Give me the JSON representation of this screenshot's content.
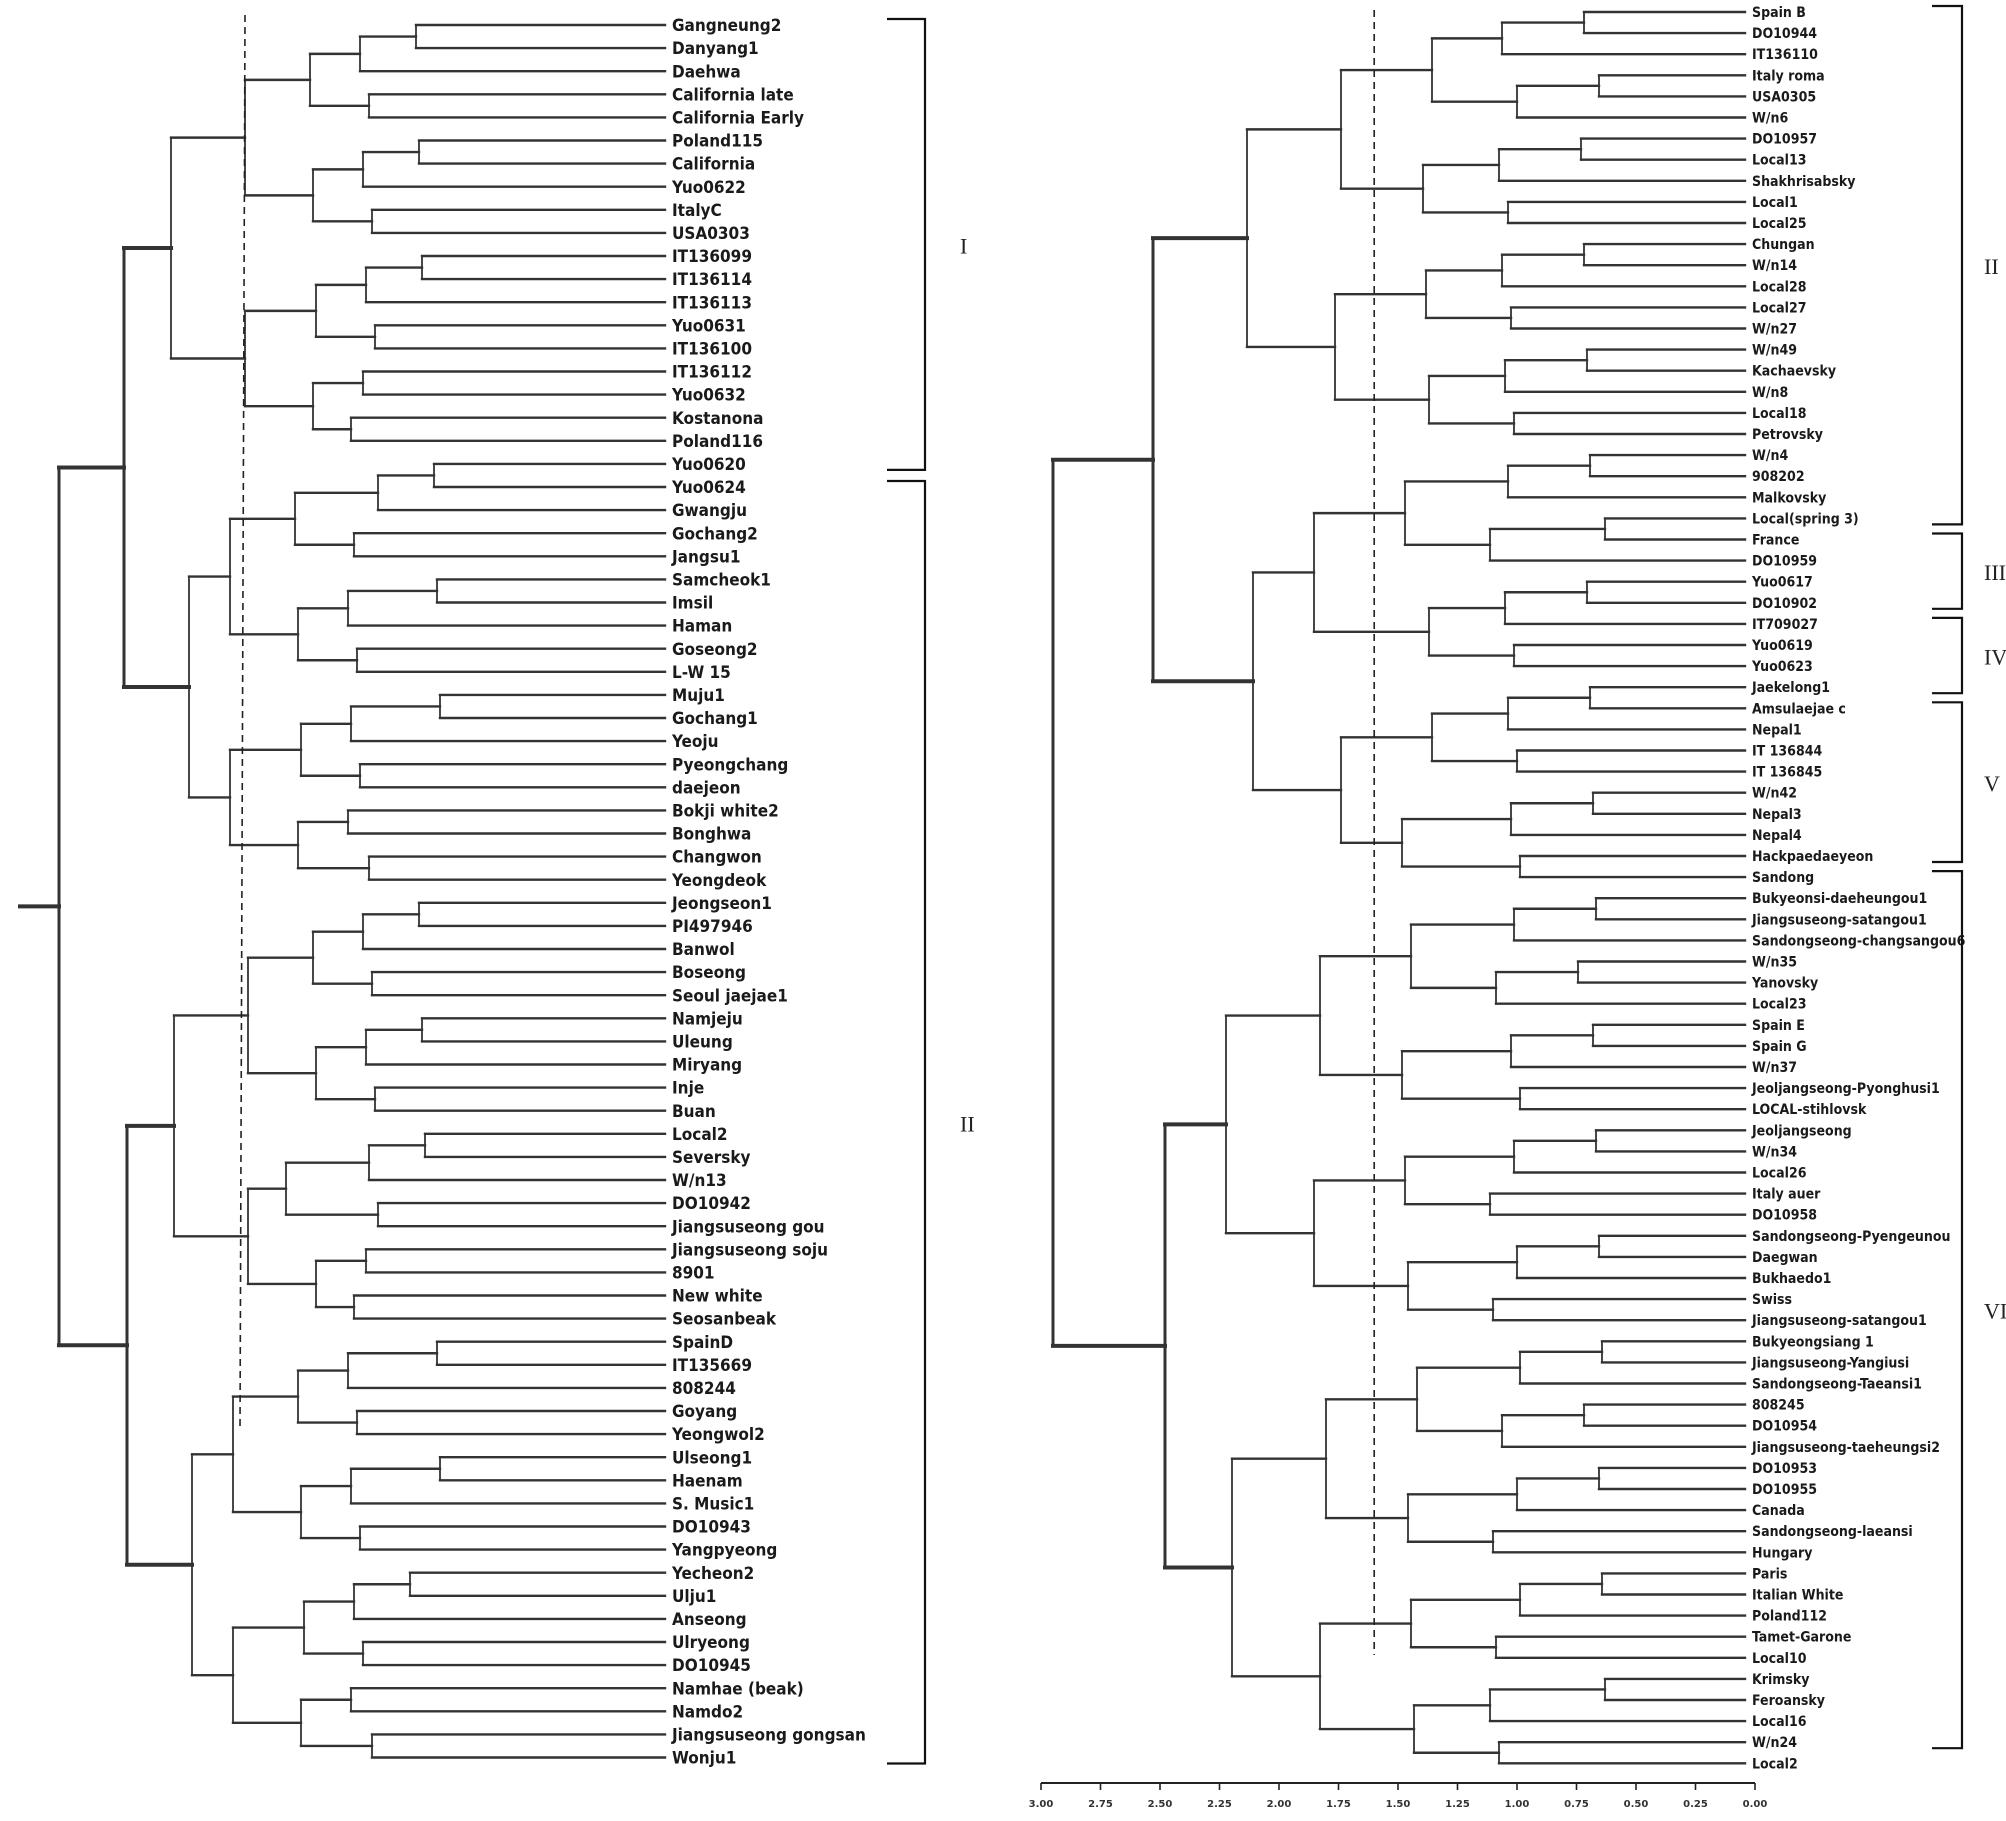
{
  "left_taxa": [
    "Gangneung2",
    "Danyang1",
    "Daehwa",
    "California late",
    "California Early",
    "Poland115",
    "California",
    "Yuo0622",
    "ItalyC",
    "USA0303",
    "IT136099",
    "IT136114",
    "IT136113",
    "Yuo0631",
    "IT136100",
    "IT136112",
    "Yuo0632",
    "Kostanona",
    "Poland116",
    "Yuo0620",
    "Yuo0624",
    "Gwangju",
    "Gochang2",
    "Jangsu1",
    "Samcheok1",
    "Imsil",
    "Haman",
    "Goseong2",
    "L-W 15",
    "Muju1",
    "Gochang1",
    "Yeoju",
    "Pyeongchang",
    "daejeon",
    "Bokji white2",
    "Bonghwa",
    "Changwon",
    "Yeongdeok",
    "Jeongseon1",
    "PI497946",
    "Banwol",
    "Boseong",
    "Seoul jaejae1",
    "Namjeju",
    "Uleung",
    "Miryang",
    "Inje",
    "Buan",
    "Local2",
    "Seversky",
    "W/n13",
    "DO10942",
    "Jiangsuseong gou",
    "Jiangsuseong soju",
    "8901",
    "New white",
    "Seosanbeak",
    "SpainD",
    "IT135669",
    "808244",
    "Goyang",
    "Yeongwol2",
    "Ulseong1",
    "Haenam",
    "S. Music1",
    "DO10943",
    "Yangpyeong",
    "Yecheon2",
    "Ulju1",
    "Anseong",
    "Ulryeong",
    "DO10945",
    "Namhae (beak)",
    "Namdo2",
    "Jiangsuseong gongsan",
    "Wonju1"
  ],
  "right_taxa": [
    "Spain B",
    "DO10944",
    "IT136110",
    "Italy roma",
    "USA0305",
    "W/n6",
    "DO10957",
    "Local13",
    "Shakhrisabsky",
    "Local1",
    "Local25",
    "Chungan",
    "W/n14",
    "Local28",
    "Local27",
    "W/n27",
    "W/n49",
    "Kachaevsky",
    "W/n8",
    "Local18",
    "Petrovsky",
    "W/n4",
    "908202",
    "Malkovsky",
    "Local(spring 3)",
    "France",
    "DO10959",
    "Yuo0617",
    "DO10902",
    "IT709027",
    "Yuo0619",
    "Yuo0623",
    "Jaekelong1",
    "Amsulaejae c",
    "Nepal1",
    "IT 136844",
    "IT 136845",
    "W/n42",
    "Nepal3",
    "Nepal4",
    "Hackpaedaeyeon",
    "Sandong",
    "Bukyeonsi-daeheungou1",
    "Jiangsuseong-satangou1",
    "Sandongseong-changsangou6",
    "W/n35",
    "Yanovsky",
    "Local23",
    "Spain E",
    "Spain G",
    "W/n37",
    "Jeoljangseong-Pyonghusi1",
    "LOCAL-stihlovsk",
    "Jeoljangseong",
    "W/n34",
    "Local26",
    "Italy auer",
    "DO10958",
    "Sandongseong-Pyengeunou",
    "Daegwan",
    "Bukhaedo1",
    "Swiss",
    "Jiangsuseong-satangou1",
    "Bukyeongsiang 1",
    "Jiangsuseong-Yangiusi",
    "Sandongseong-Taeansi1",
    "808245",
    "DO10954",
    "Jiangsuseong-taeheungsi2",
    "DO10953",
    "DO10955",
    "Canada",
    "Sandongseong-laeansi",
    "Hungary",
    "Paris",
    "Italian White",
    "Poland112",
    "Tamet-Garone",
    "Local10",
    "Krimsky",
    "Feroansky",
    "Local16",
    "W/n24",
    "Local2"
  ],
  "left_groups": [
    {
      "label": "I",
      "from": 0,
      "to": 19
    },
    {
      "label": "II",
      "from": 20,
      "to": 75
    }
  ],
  "right_groups": [
    {
      "label": "II",
      "from": 0,
      "to": 24
    },
    {
      "label": "III",
      "from": 25,
      "to": 28
    },
    {
      "label": "IV",
      "from": 29,
      "to": 32
    },
    {
      "label": "V",
      "from": 33,
      "to": 40
    },
    {
      "label": "VI",
      "from": 41,
      "to": 82
    }
  ],
  "axis_ticks": [
    "3.00",
    "2.75",
    "2.50",
    "2.25",
    "2.00",
    "1.75",
    "1.50",
    "1.25",
    "1.00",
    "0.75",
    "0.50",
    "0.25",
    "0.00"
  ],
  "axis_range": [
    3.0,
    0.0
  ],
  "left_cutoff": 1.65,
  "right_cutoff": 1.6
}
